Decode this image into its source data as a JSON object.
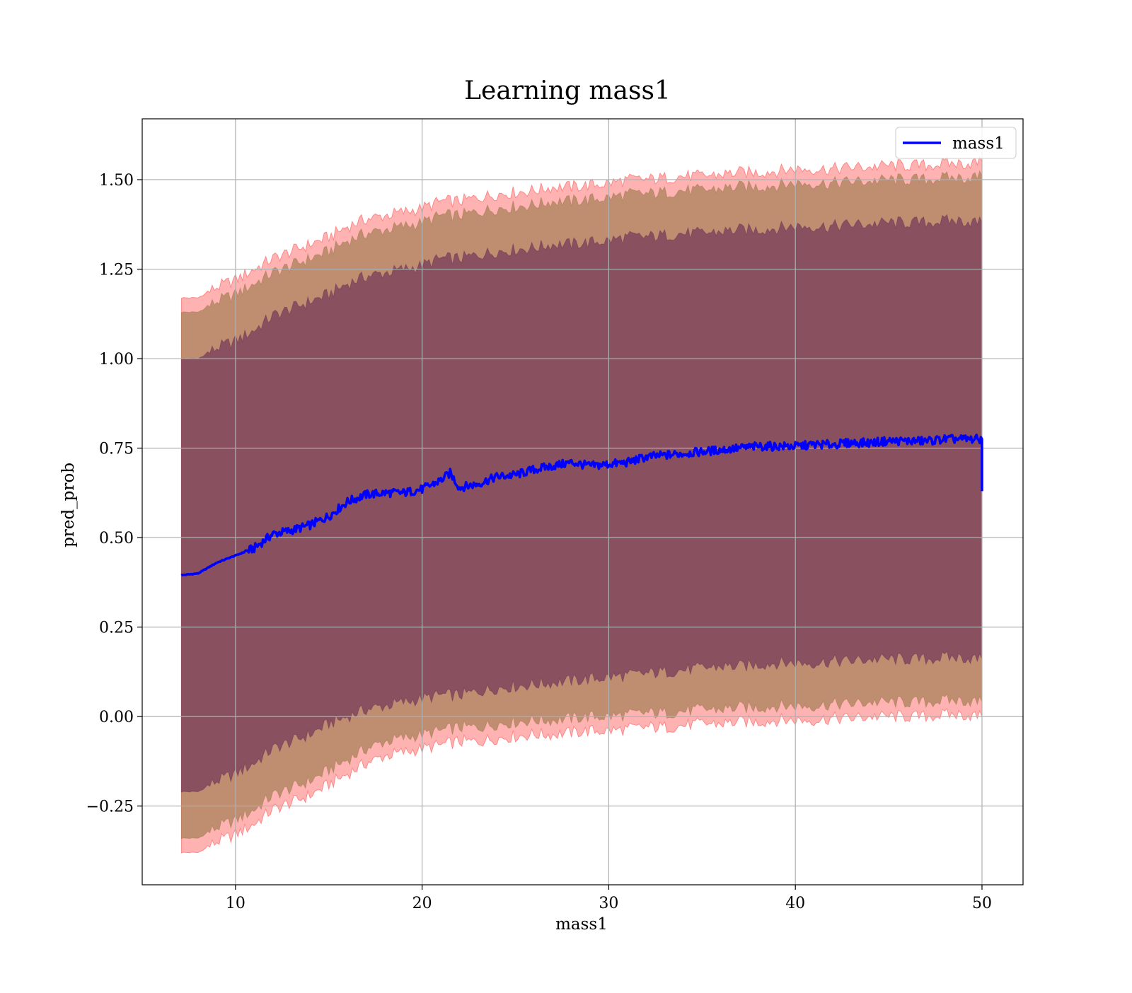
{
  "chart_data": {
    "type": "area",
    "title": "Learning mass1",
    "xlabel": "mass1",
    "ylabel": "pred_prob",
    "xlim": [
      5,
      52.2
    ],
    "ylim": [
      -0.47,
      1.67
    ],
    "grid": true,
    "legend_position": "top-right",
    "x_ticks": [
      10,
      20,
      30,
      40,
      50
    ],
    "x_tick_labels": [
      "10",
      "20",
      "30",
      "40",
      "50"
    ],
    "y_ticks": [
      -0.25,
      0.0,
      0.25,
      0.5,
      0.75,
      1.0,
      1.25,
      1.5
    ],
    "y_tick_labels": [
      "−0.25",
      "0.00",
      "0.25",
      "0.50",
      "0.75",
      "1.00",
      "1.25",
      "1.50"
    ],
    "colors": {
      "line": "#0000ff",
      "band_outer": "#ff0000",
      "band_middle": "#8b6f3a",
      "band_inner": "#5c1f52"
    },
    "series": [
      {
        "name": "mass1",
        "style": "line",
        "x": [
          7.1,
          8,
          9,
          10,
          11,
          12,
          13,
          14,
          15,
          16,
          17,
          18,
          19,
          20,
          21,
          21.5,
          22,
          23,
          24,
          25,
          26,
          27,
          28,
          29,
          30,
          31,
          32,
          33,
          34,
          35,
          36,
          37,
          38,
          39,
          40,
          41,
          42,
          43,
          44,
          45,
          46,
          47,
          48,
          49,
          50,
          50
        ],
        "values": [
          0.395,
          0.4,
          0.43,
          0.45,
          0.47,
          0.51,
          0.52,
          0.535,
          0.56,
          0.6,
          0.62,
          0.625,
          0.625,
          0.635,
          0.66,
          0.68,
          0.64,
          0.65,
          0.67,
          0.675,
          0.69,
          0.7,
          0.71,
          0.7,
          0.705,
          0.71,
          0.725,
          0.73,
          0.735,
          0.74,
          0.745,
          0.75,
          0.755,
          0.755,
          0.755,
          0.76,
          0.76,
          0.765,
          0.765,
          0.77,
          0.77,
          0.77,
          0.775,
          0.775,
          0.775,
          0.63
        ]
      }
    ],
    "bands": [
      {
        "role": "outer",
        "x": [
          7.1,
          8,
          9,
          10,
          11,
          12,
          13,
          14,
          15,
          16,
          17,
          18,
          19,
          20,
          21,
          22,
          23,
          24,
          25,
          26,
          27,
          28,
          29,
          30,
          31,
          32,
          33,
          34,
          35,
          36,
          37,
          38,
          39,
          40,
          41,
          42,
          43,
          44,
          45,
          46,
          47,
          48,
          49,
          50
        ],
        "upper": [
          1.17,
          1.17,
          1.2,
          1.22,
          1.25,
          1.28,
          1.3,
          1.32,
          1.34,
          1.37,
          1.39,
          1.4,
          1.41,
          1.42,
          1.44,
          1.44,
          1.45,
          1.46,
          1.465,
          1.47,
          1.48,
          1.48,
          1.485,
          1.49,
          1.5,
          1.5,
          1.505,
          1.51,
          1.51,
          1.515,
          1.52,
          1.52,
          1.525,
          1.53,
          1.53,
          1.53,
          1.535,
          1.535,
          1.54,
          1.54,
          1.54,
          1.545,
          1.545,
          1.55
        ],
        "lower": [
          -0.38,
          -0.38,
          -0.35,
          -0.33,
          -0.3,
          -0.26,
          -0.24,
          -0.22,
          -0.19,
          -0.16,
          -0.13,
          -0.11,
          -0.1,
          -0.09,
          -0.08,
          -0.07,
          -0.07,
          -0.06,
          -0.055,
          -0.05,
          -0.05,
          -0.045,
          -0.04,
          -0.04,
          -0.035,
          -0.03,
          -0.03,
          -0.025,
          -0.02,
          -0.02,
          -0.015,
          -0.015,
          -0.01,
          -0.01,
          -0.01,
          -0.005,
          -0.005,
          0.0,
          0.0,
          0.0,
          0.0,
          0.005,
          0.005,
          0.0
        ]
      },
      {
        "role": "middle",
        "x": [
          7.1,
          8,
          9,
          10,
          11,
          12,
          13,
          14,
          15,
          16,
          17,
          18,
          19,
          20,
          21,
          22,
          23,
          24,
          25,
          26,
          27,
          28,
          29,
          30,
          31,
          32,
          33,
          34,
          35,
          36,
          37,
          38,
          39,
          40,
          41,
          42,
          43,
          44,
          45,
          46,
          47,
          48,
          49,
          50
        ],
        "upper": [
          1.13,
          1.13,
          1.16,
          1.18,
          1.21,
          1.24,
          1.26,
          1.28,
          1.3,
          1.33,
          1.35,
          1.36,
          1.37,
          1.38,
          1.4,
          1.4,
          1.41,
          1.42,
          1.425,
          1.43,
          1.44,
          1.44,
          1.445,
          1.45,
          1.46,
          1.46,
          1.465,
          1.47,
          1.47,
          1.475,
          1.48,
          1.48,
          1.485,
          1.49,
          1.49,
          1.49,
          1.495,
          1.495,
          1.5,
          1.5,
          1.5,
          1.505,
          1.505,
          1.51
        ],
        "lower": [
          -0.34,
          -0.34,
          -0.31,
          -0.29,
          -0.26,
          -0.22,
          -0.2,
          -0.18,
          -0.15,
          -0.12,
          -0.09,
          -0.07,
          -0.06,
          -0.05,
          -0.04,
          -0.03,
          -0.03,
          -0.02,
          -0.015,
          -0.01,
          -0.01,
          -0.005,
          0.0,
          0.0,
          0.005,
          0.01,
          0.01,
          0.015,
          0.02,
          0.02,
          0.025,
          0.025,
          0.03,
          0.03,
          0.03,
          0.035,
          0.035,
          0.04,
          0.04,
          0.04,
          0.04,
          0.045,
          0.045,
          0.04
        ]
      },
      {
        "role": "inner",
        "x": [
          7.1,
          8,
          9,
          10,
          11,
          12,
          13,
          14,
          15,
          16,
          17,
          18,
          19,
          20,
          21,
          22,
          23,
          24,
          25,
          26,
          27,
          28,
          29,
          30,
          31,
          32,
          33,
          34,
          35,
          36,
          37,
          38,
          39,
          40,
          41,
          42,
          43,
          44,
          45,
          46,
          47,
          48,
          49,
          50
        ],
        "upper": [
          1.0,
          1.0,
          1.03,
          1.05,
          1.08,
          1.12,
          1.14,
          1.16,
          1.18,
          1.21,
          1.23,
          1.24,
          1.25,
          1.26,
          1.28,
          1.28,
          1.29,
          1.3,
          1.305,
          1.31,
          1.32,
          1.32,
          1.325,
          1.33,
          1.34,
          1.34,
          1.345,
          1.35,
          1.35,
          1.355,
          1.36,
          1.36,
          1.365,
          1.37,
          1.37,
          1.37,
          1.375,
          1.375,
          1.38,
          1.38,
          1.38,
          1.385,
          1.385,
          1.38
        ],
        "lower": [
          -0.21,
          -0.21,
          -0.18,
          -0.16,
          -0.13,
          -0.09,
          -0.07,
          -0.05,
          -0.02,
          0.0,
          0.02,
          0.03,
          0.04,
          0.05,
          0.06,
          0.06,
          0.07,
          0.08,
          0.085,
          0.09,
          0.095,
          0.1,
          0.105,
          0.11,
          0.115,
          0.12,
          0.125,
          0.13,
          0.135,
          0.14,
          0.14,
          0.145,
          0.15,
          0.15,
          0.15,
          0.155,
          0.155,
          0.16,
          0.16,
          0.16,
          0.16,
          0.165,
          0.165,
          0.16
        ]
      }
    ]
  }
}
